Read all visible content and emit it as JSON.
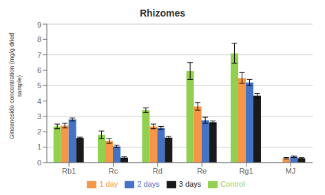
{
  "chart_data": {
    "type": "bar",
    "title": "Rhizomes",
    "ylabel": "Ginsenoside concentration (mg/g dried\nsample)",
    "categories": [
      "Rb1",
      "Rc",
      "Rd",
      "Re",
      "Rg1",
      "MJ"
    ],
    "series": [
      {
        "name": "Control",
        "color": "#92d050",
        "values": [
          2.35,
          1.8,
          3.4,
          5.95,
          7.1,
          0.0
        ],
        "errors": [
          0.15,
          0.25,
          0.15,
          0.55,
          0.65,
          0.0
        ]
      },
      {
        "name": "1 day",
        "color": "#f79646",
        "values": [
          2.4,
          1.4,
          2.35,
          3.65,
          5.5,
          0.28
        ],
        "errors": [
          0.15,
          0.15,
          0.15,
          0.25,
          0.35,
          0.05
        ]
      },
      {
        "name": "2 days",
        "color": "#4472c4",
        "values": [
          2.8,
          1.05,
          2.25,
          2.75,
          5.2,
          0.38
        ],
        "errors": [
          0.1,
          0.08,
          0.1,
          0.2,
          0.2,
          0.05
        ]
      },
      {
        "name": "3 days",
        "color": "#1a1a1a",
        "values": [
          1.6,
          0.32,
          1.62,
          2.62,
          4.35,
          0.28
        ],
        "errors": [
          0.05,
          0.05,
          0.08,
          0.08,
          0.15,
          0.04
        ]
      }
    ],
    "ylim": [
      0,
      9
    ],
    "yticks": [
      0,
      1,
      2,
      3,
      4,
      5,
      6,
      7,
      8,
      9
    ],
    "grid": true,
    "legend": "bottom"
  }
}
